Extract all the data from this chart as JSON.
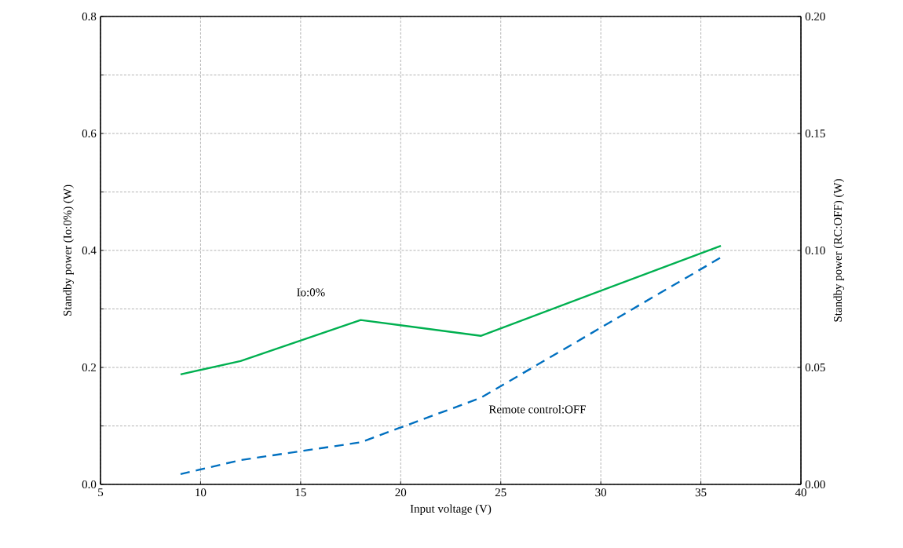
{
  "chart_data": {
    "type": "line",
    "xlabel": "Input voltage (V)",
    "ylabel": "Standby power (Io:0%) (W)",
    "y2label": "Standby power (RC:OFF) (W)",
    "series": [
      {
        "name": "Io:0%",
        "color": "#00b050",
        "x": [
          9,
          12,
          18,
          24,
          36
        ],
        "values": [
          0.188,
          0.211,
          0.281,
          0.254,
          0.408
        ],
        "line_style": "solid"
      },
      {
        "name": "Remote control:OFF",
        "color": "#0070c0",
        "x": [
          9,
          12,
          18,
          24,
          36
        ],
        "values": [
          0.0044,
          0.0104,
          0.018,
          0.037,
          0.097
        ],
        "line_style": "dashed",
        "axis": "y2"
      }
    ],
    "xlim": [
      5,
      40
    ],
    "xticks": [
      5,
      10,
      15,
      20,
      25,
      30,
      35,
      40
    ],
    "ylim": [
      0,
      0.8
    ],
    "yticks": [
      {
        "value": 0,
        "label": "0.0"
      },
      {
        "value": 0.1,
        "label": null
      },
      0.2,
      {
        "value": 0.3,
        "label": null
      },
      0.4,
      {
        "value": 0.5,
        "label": null
      },
      0.6,
      {
        "value": 0.7,
        "label": null
      },
      0.8
    ],
    "y2lim": [
      0,
      0.2
    ],
    "y2ticks": [
      {
        "value": 0,
        "label": "0.00"
      },
      {
        "value": 0.05,
        "label": "0.05"
      },
      {
        "value": 0.1,
        "label": "0.10"
      },
      {
        "value": 0.15,
        "label": "0.15"
      },
      {
        "value": 0.2,
        "label": "0.20"
      }
    ],
    "grid": true,
    "legend": false,
    "marker": "none"
  }
}
